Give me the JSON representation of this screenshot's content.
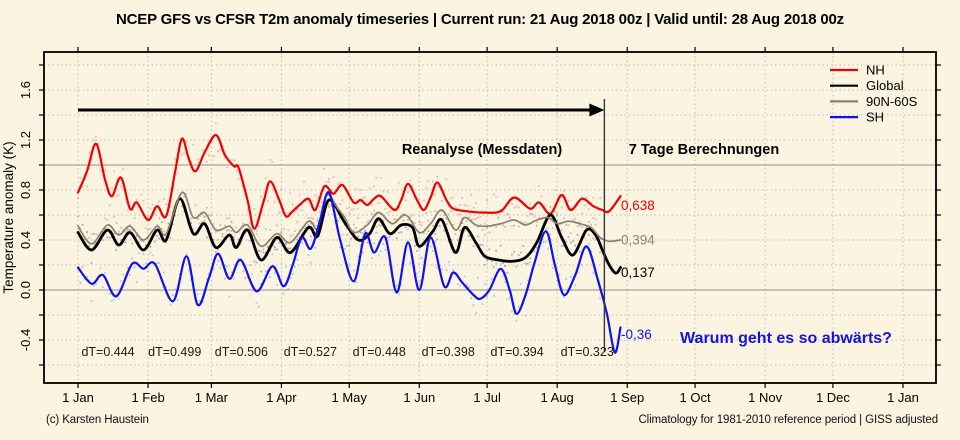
{
  "title": "NCEP GFS vs CFSR T2m anomaly timeseries | Current run: 21 Aug 2018 00z | Valid until: 28 Aug 2018 00z",
  "footer": {
    "left": "(c) Karsten Haustein",
    "right": "Climatology for 1981-2010 reference period | GISS adjusted"
  },
  "annotations": {
    "reanalysis_label": "Reanalyse (Messdaten)",
    "forecast_label": "7 Tage Berechnungen",
    "question": "Warum geht es so abwärts?",
    "question_color": "#1414e0",
    "end_value_labels": [
      {
        "text": "0,638",
        "series": "NH"
      },
      {
        "text": "0,394",
        "series": "90N-60S"
      },
      {
        "text": "0,137",
        "series": "Global"
      },
      {
        "text": "-0,36",
        "series": "SH"
      }
    ],
    "dT_labels": [
      "dT=0.444",
      "dT=0.499",
      "dT=0.506",
      "dT=0.527",
      "dT=0.448",
      "dT=0.398",
      "dT=0.394",
      "dT=0.323"
    ]
  },
  "chart_data": {
    "type": "line",
    "title": "NCEP GFS vs CFSR T2m anomaly timeseries",
    "xlabel": "",
    "ylabel": "Temperature anomaly (K)",
    "ylim": [
      -0.744,
      1.904
    ],
    "ytick_labels": [
      "-0.4",
      "0.0",
      "0.4",
      "0.8",
      "1.2",
      "1.6"
    ],
    "ytick_values": [
      -0.4,
      0.0,
      0.4,
      0.8,
      1.2,
      1.6
    ],
    "minor_grid_step": 0.2,
    "solid_gridlines": [
      0.0,
      1.0
    ],
    "grid": true,
    "legend_position": "top-right",
    "x_unit": "day of year (0 = 1 Jan 2018)",
    "x_tick_labels": [
      "1 Jan",
      "1 Feb",
      "1 Mar",
      "1 Apr",
      "1 May",
      "1 Jun",
      "1 Jul",
      "1 Aug",
      "1 Sep",
      "1 Oct",
      "1 Nov",
      "1 Dec",
      "1 Jan"
    ],
    "x_tick_days": [
      0,
      31,
      59,
      90,
      120,
      151,
      181,
      212,
      243,
      273,
      304,
      334,
      365
    ],
    "reanalysis_end_day": 232,
    "forecast_end_day": 240,
    "arrow_level_K": 1.44,
    "series": [
      {
        "name": "NH",
        "color": "#f00000",
        "dot_color": "#ff9db0",
        "width": 2.2,
        "points": [
          [
            0,
            0.78
          ],
          [
            4,
            0.95
          ],
          [
            8,
            1.17
          ],
          [
            12,
            0.88
          ],
          [
            15,
            0.75
          ],
          [
            19,
            0.9
          ],
          [
            23,
            0.65
          ],
          [
            26,
            0.7
          ],
          [
            31,
            0.56
          ],
          [
            35,
            0.67
          ],
          [
            39,
            0.59
          ],
          [
            43,
            0.95
          ],
          [
            46,
            1.21
          ],
          [
            49,
            1.05
          ],
          [
            52,
            0.95
          ],
          [
            56,
            1.1
          ],
          [
            61,
            1.24
          ],
          [
            65,
            1.08
          ],
          [
            69,
            0.99
          ],
          [
            71,
            0.98
          ],
          [
            75,
            0.72
          ],
          [
            78,
            0.49
          ],
          [
            82,
            0.7
          ],
          [
            85,
            0.87
          ],
          [
            89,
            0.72
          ],
          [
            92,
            0.59
          ],
          [
            95,
            0.63
          ],
          [
            98,
            0.68
          ],
          [
            102,
            0.73
          ],
          [
            105,
            0.64
          ],
          [
            109,
            0.83
          ],
          [
            113,
            0.77
          ],
          [
            117,
            0.84
          ],
          [
            122,
            0.7
          ],
          [
            125,
            0.72
          ],
          [
            128,
            0.68
          ],
          [
            131,
            0.73
          ],
          [
            134,
            0.75
          ],
          [
            140,
            0.64
          ],
          [
            143,
            0.72
          ],
          [
            146,
            0.85
          ],
          [
            150,
            0.72
          ],
          [
            153,
            0.64
          ],
          [
            156,
            0.74
          ],
          [
            159,
            0.86
          ],
          [
            163,
            0.72
          ],
          [
            166,
            0.65
          ],
          [
            172,
            0.63
          ],
          [
            179,
            0.62
          ],
          [
            187,
            0.63
          ],
          [
            193,
            0.74
          ],
          [
            200,
            0.65
          ],
          [
            204,
            0.7
          ],
          [
            209,
            0.61
          ],
          [
            214,
            0.76
          ],
          [
            218,
            0.64
          ],
          [
            223,
            0.73
          ],
          [
            228,
            0.67
          ],
          [
            232,
            0.64
          ],
          [
            235,
            0.63
          ],
          [
            240,
            0.75
          ]
        ]
      },
      {
        "name": "Global",
        "color": "#000000",
        "dot_color": "#9e9e9e",
        "width": 2.8,
        "points": [
          [
            0,
            0.46
          ],
          [
            6,
            0.32
          ],
          [
            13,
            0.48
          ],
          [
            18,
            0.36
          ],
          [
            23,
            0.46
          ],
          [
            29,
            0.32
          ],
          [
            35,
            0.48
          ],
          [
            39,
            0.4
          ],
          [
            45,
            0.73
          ],
          [
            51,
            0.45
          ],
          [
            56,
            0.53
          ],
          [
            61,
            0.34
          ],
          [
            67,
            0.44
          ],
          [
            70,
            0.34
          ],
          [
            75,
            0.48
          ],
          [
            81,
            0.24
          ],
          [
            88,
            0.42
          ],
          [
            94,
            0.3
          ],
          [
            102,
            0.5
          ],
          [
            106,
            0.43
          ],
          [
            111,
            0.72
          ],
          [
            118,
            0.54
          ],
          [
            124,
            0.4
          ],
          [
            129,
            0.45
          ],
          [
            133,
            0.57
          ],
          [
            138,
            0.45
          ],
          [
            143,
            0.52
          ],
          [
            148,
            0.5
          ],
          [
            151,
            0.35
          ],
          [
            157,
            0.47
          ],
          [
            161,
            0.56
          ],
          [
            167,
            0.3
          ],
          [
            171,
            0.5
          ],
          [
            176,
            0.38
          ],
          [
            180,
            0.27
          ],
          [
            186,
            0.24
          ],
          [
            192,
            0.23
          ],
          [
            198,
            0.26
          ],
          [
            203,
            0.38
          ],
          [
            209,
            0.6
          ],
          [
            214,
            0.42
          ],
          [
            219,
            0.28
          ],
          [
            225,
            0.48
          ],
          [
            229,
            0.44
          ],
          [
            232,
            0.32
          ],
          [
            235,
            0.2
          ],
          [
            238,
            0.135
          ],
          [
            240,
            0.18
          ]
        ]
      },
      {
        "name": "90N-60S",
        "color": "#8d8070",
        "dot_color": "#bfb09c",
        "width": 1.7,
        "points": [
          [
            0,
            0.51
          ],
          [
            6,
            0.37
          ],
          [
            13,
            0.52
          ],
          [
            18,
            0.44
          ],
          [
            23,
            0.51
          ],
          [
            29,
            0.4
          ],
          [
            35,
            0.51
          ],
          [
            39,
            0.45
          ],
          [
            46,
            0.78
          ],
          [
            51,
            0.58
          ],
          [
            56,
            0.62
          ],
          [
            61,
            0.48
          ],
          [
            67,
            0.51
          ],
          [
            70,
            0.46
          ],
          [
            75,
            0.52
          ],
          [
            81,
            0.35
          ],
          [
            88,
            0.45
          ],
          [
            94,
            0.38
          ],
          [
            102,
            0.55
          ],
          [
            106,
            0.49
          ],
          [
            110,
            0.76
          ],
          [
            115,
            0.65
          ],
          [
            118,
            0.58
          ],
          [
            122,
            0.46
          ],
          [
            128,
            0.52
          ],
          [
            133,
            0.62
          ],
          [
            139,
            0.53
          ],
          [
            145,
            0.6
          ],
          [
            151,
            0.46
          ],
          [
            156,
            0.53
          ],
          [
            161,
            0.64
          ],
          [
            167,
            0.48
          ],
          [
            171,
            0.58
          ],
          [
            176,
            0.52
          ],
          [
            181,
            0.51
          ],
          [
            187,
            0.53
          ],
          [
            193,
            0.56
          ],
          [
            198,
            0.52
          ],
          [
            203,
            0.56
          ],
          [
            208,
            0.58
          ],
          [
            212,
            0.53
          ],
          [
            217,
            0.55
          ],
          [
            222,
            0.53
          ],
          [
            227,
            0.5
          ],
          [
            231,
            0.42
          ],
          [
            235,
            0.39
          ],
          [
            240,
            0.4
          ]
        ]
      },
      {
        "name": "SH",
        "color": "#1010f0",
        "dot_color": "#8cc3e8",
        "width": 2.2,
        "points": [
          [
            0,
            0.18
          ],
          [
            6,
            0.05
          ],
          [
            11,
            0.12
          ],
          [
            17,
            -0.05
          ],
          [
            24,
            0.21
          ],
          [
            29,
            0.17
          ],
          [
            34,
            0.21
          ],
          [
            42,
            -0.09
          ],
          [
            48,
            0.27
          ],
          [
            53,
            -0.12
          ],
          [
            58,
            0.1
          ],
          [
            62,
            0.29
          ],
          [
            67,
            0.09
          ],
          [
            72,
            0.24
          ],
          [
            79,
            -0.01
          ],
          [
            86,
            0.19
          ],
          [
            91,
            0.03
          ],
          [
            95,
            0.2
          ],
          [
            99,
            0.42
          ],
          [
            103,
            0.33
          ],
          [
            107,
            0.55
          ],
          [
            111,
            0.78
          ],
          [
            116,
            0.4
          ],
          [
            122,
            0.07
          ],
          [
            127,
            0.45
          ],
          [
            131,
            0.3
          ],
          [
            136,
            0.42
          ],
          [
            141,
            -0.02
          ],
          [
            146,
            0.38
          ],
          [
            151,
            0.0
          ],
          [
            156,
            0.42
          ],
          [
            162,
            0.03
          ],
          [
            166,
            0.14
          ],
          [
            170,
            0.06
          ],
          [
            175,
            -0.04
          ],
          [
            178,
            -0.07
          ],
          [
            182,
            0.0
          ],
          [
            187,
            0.17
          ],
          [
            191,
            0.0
          ],
          [
            194,
            -0.19
          ],
          [
            198,
            -0.04
          ],
          [
            202,
            0.22
          ],
          [
            207,
            0.47
          ],
          [
            211,
            0.2
          ],
          [
            215,
            -0.04
          ],
          [
            220,
            0.12
          ],
          [
            225,
            0.35
          ],
          [
            230,
            0.08
          ],
          [
            234,
            -0.19
          ],
          [
            237.5,
            -0.5
          ],
          [
            240,
            -0.3
          ]
        ]
      }
    ]
  }
}
